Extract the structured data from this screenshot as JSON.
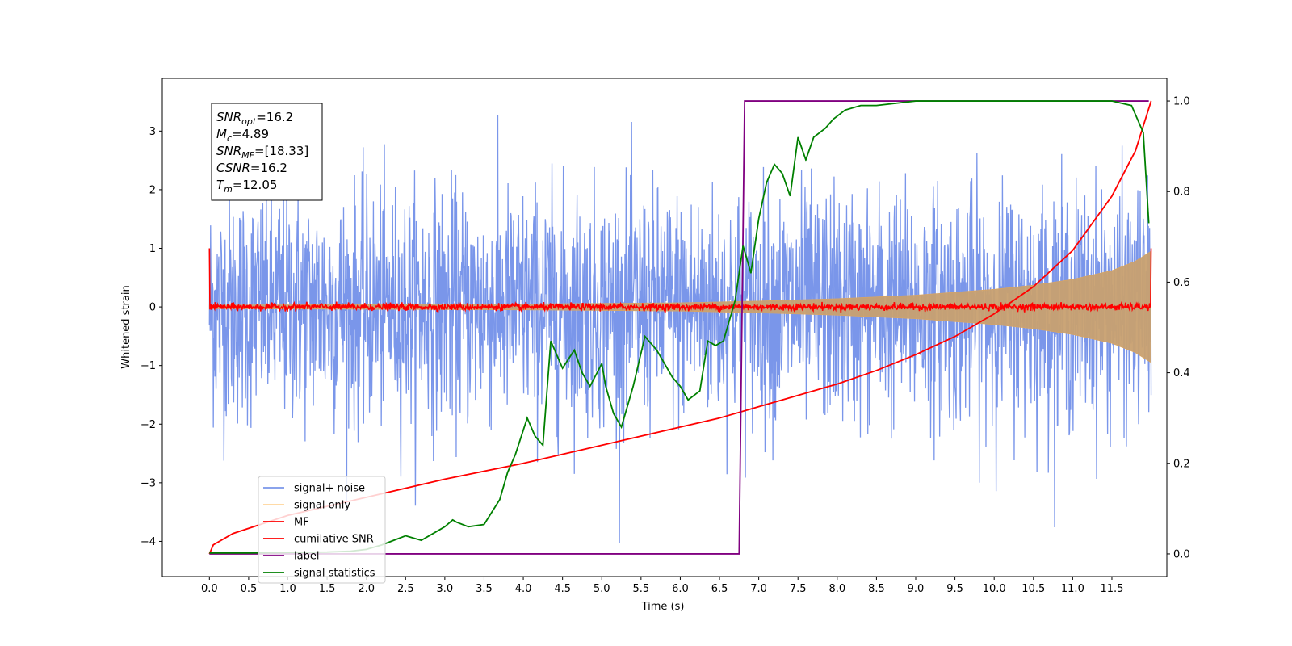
{
  "chart_data": {
    "type": "line",
    "xlabel": "Time (s)",
    "ylabel": "Whitened strain",
    "xlim": [
      -0.6,
      12.2
    ],
    "ylim": [
      -4.6,
      3.9
    ],
    "y2lim": [
      -0.05,
      1.05
    ],
    "xticks": [
      "0.0",
      "0.5",
      "1.0",
      "1.5",
      "2.0",
      "2.5",
      "3.0",
      "3.5",
      "4.0",
      "4.5",
      "5.0",
      "5.5",
      "6.0",
      "6.5",
      "7.0",
      "7.5",
      "8.0",
      "8.5",
      "9.0",
      "9.5",
      "10.0",
      "10.5",
      "11.0",
      "11.5"
    ],
    "yticks": [
      "3",
      "2",
      "1",
      "0",
      "−1",
      "−2",
      "−3",
      "−4"
    ],
    "y2ticks": [
      "1.0",
      "0.8",
      "0.6",
      "0.4",
      "0.2",
      "0.0"
    ],
    "annotation": [
      {
        "base": "SNR",
        "sub": "opt",
        "value": "=16.2"
      },
      {
        "base": "M",
        "sub": "c",
        "value": "=4.89"
      },
      {
        "base": "SNR",
        "sub": "MF",
        "value": "=[18.33]"
      },
      {
        "base": "CSNR",
        "sub": "",
        "value": "=16.2"
      },
      {
        "base": "T",
        "sub": "m",
        "value": "=12.05"
      }
    ],
    "legend_position": "lower-left",
    "legend": [
      {
        "name": "signal+ noise",
        "color": "#4169e1"
      },
      {
        "name": "signal only",
        "color": "#ffb347"
      },
      {
        "name": "MF",
        "color": "#ff0000"
      },
      {
        "name": "cumilative SNR",
        "color": "#ff0000"
      },
      {
        "name": "label",
        "color": "#800080"
      },
      {
        "name": "signal statistics",
        "color": "#008000"
      }
    ],
    "series": [
      {
        "name": "signal+ noise",
        "axis": "left",
        "color": "#4169e1",
        "noise_std": 1.0,
        "x_start": 0.0,
        "x_end": 12.0,
        "observed_max": 3.58,
        "observed_min": -4.18
      },
      {
        "name": "signal only",
        "axis": "left",
        "color": "#ffb347",
        "envelope_x": [
          0,
          2,
          4,
          6,
          7,
          8,
          9,
          10,
          10.5,
          11,
          11.5,
          11.8,
          12.0
        ],
        "envelope_y": [
          0.03,
          0.04,
          0.05,
          0.07,
          0.1,
          0.14,
          0.2,
          0.3,
          0.37,
          0.47,
          0.62,
          0.78,
          0.95
        ]
      },
      {
        "name": "MF",
        "axis": "left",
        "color": "#ff0000",
        "noise_std": 0.03,
        "spike_start": 1.0,
        "spike_end": 1.0,
        "x_start": 0.0,
        "x_end": 12.0
      },
      {
        "name": "cumilative SNR",
        "axis": "right",
        "color": "#ff0000",
        "x": [
          0,
          0.05,
          0.3,
          1.0,
          2.0,
          3.0,
          4.0,
          5.0,
          6.0,
          6.5,
          7.0,
          7.5,
          8.0,
          8.5,
          9.0,
          9.5,
          10.0,
          10.5,
          11.0,
          11.5,
          11.8,
          12.0
        ],
        "y": [
          0.0,
          0.02,
          0.045,
          0.085,
          0.125,
          0.165,
          0.2,
          0.24,
          0.28,
          0.3,
          0.325,
          0.35,
          0.375,
          0.405,
          0.44,
          0.48,
          0.53,
          0.59,
          0.67,
          0.79,
          0.89,
          1.0
        ]
      },
      {
        "name": "label",
        "axis": "right",
        "color": "#800080",
        "x": [
          0,
          6.75,
          6.82,
          11.97
        ],
        "y": [
          0,
          0,
          1,
          1
        ]
      },
      {
        "name": "signal statistics",
        "axis": "right",
        "color": "#008000",
        "x": [
          0,
          0.5,
          1.0,
          1.5,
          1.8,
          2.0,
          2.2,
          2.35,
          2.5,
          2.7,
          2.9,
          3.0,
          3.1,
          3.15,
          3.3,
          3.5,
          3.7,
          3.8,
          3.9,
          4.05,
          4.15,
          4.25,
          4.35,
          4.5,
          4.65,
          4.75,
          4.85,
          5.0,
          5.05,
          5.15,
          5.25,
          5.4,
          5.55,
          5.7,
          5.9,
          6.0,
          6.1,
          6.25,
          6.35,
          6.45,
          6.55,
          6.7,
          6.8,
          6.9,
          7.0,
          7.1,
          7.2,
          7.3,
          7.4,
          7.5,
          7.6,
          7.7,
          7.85,
          7.95,
          8.1,
          8.3,
          8.5,
          9.0,
          9.5,
          10.0,
          10.5,
          11.0,
          11.5,
          11.75,
          11.9,
          11.97
        ],
        "y": [
          0.002,
          0.002,
          0.003,
          0.004,
          0.006,
          0.01,
          0.02,
          0.03,
          0.04,
          0.03,
          0.05,
          0.06,
          0.075,
          0.07,
          0.06,
          0.065,
          0.12,
          0.18,
          0.22,
          0.3,
          0.26,
          0.24,
          0.47,
          0.41,
          0.45,
          0.4,
          0.37,
          0.42,
          0.37,
          0.31,
          0.28,
          0.37,
          0.48,
          0.45,
          0.39,
          0.37,
          0.34,
          0.36,
          0.47,
          0.46,
          0.47,
          0.56,
          0.68,
          0.62,
          0.74,
          0.82,
          0.86,
          0.84,
          0.79,
          0.92,
          0.87,
          0.92,
          0.94,
          0.96,
          0.98,
          0.99,
          0.99,
          1.0,
          1.0,
          1.0,
          1.0,
          1.0,
          1.0,
          0.99,
          0.93,
          0.73
        ]
      }
    ]
  }
}
